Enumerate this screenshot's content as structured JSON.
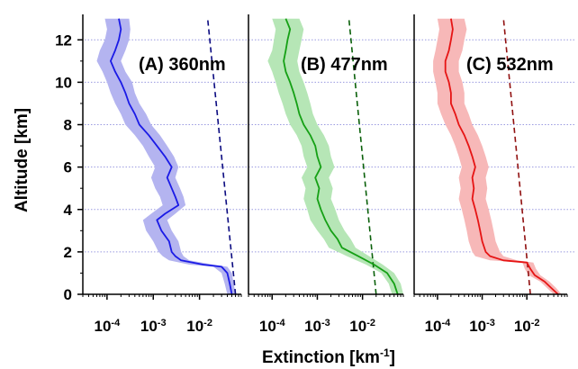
{
  "chart_data": {
    "type": "line",
    "ylabel": "Altitude [km]",
    "xlabel": {
      "main": "Extinction [km",
      "sup": "-1",
      "tail": "]"
    },
    "xscale": "log",
    "xlim": [
      3e-05,
      0.08
    ],
    "ylim": [
      0,
      13.2
    ],
    "yticks": [
      "0",
      "2",
      "4",
      "6",
      "8",
      "10",
      "12"
    ],
    "xticks": [
      {
        "base": "10",
        "exp": "-4",
        "value": 0.0001
      },
      {
        "base": "10",
        "exp": "-3",
        "value": 0.001
      },
      {
        "base": "10",
        "exp": "-2",
        "value": 0.01
      }
    ],
    "grid_y": true,
    "panels": [
      {
        "label": "(A) 360nm",
        "color": "#1a1ae6",
        "band_color": "#b4b4f0",
        "dashed_color": "#0a0a80",
        "profile": [
          [
            0.0,
            0.05
          ],
          [
            0.5,
            0.045
          ],
          [
            1.0,
            0.04
          ],
          [
            1.3,
            0.03
          ],
          [
            1.4,
            0.012
          ],
          [
            1.6,
            0.004
          ],
          [
            1.8,
            0.003
          ],
          [
            2.0,
            0.0025
          ],
          [
            2.5,
            0.0022
          ],
          [
            3.0,
            0.0015
          ],
          [
            3.5,
            0.0012
          ],
          [
            3.8,
            0.0018
          ],
          [
            4.2,
            0.0035
          ],
          [
            4.6,
            0.003
          ],
          [
            5.0,
            0.0025
          ],
          [
            5.5,
            0.002
          ],
          [
            6.0,
            0.0025
          ],
          [
            6.5,
            0.0018
          ],
          [
            7.0,
            0.0012
          ],
          [
            7.5,
            0.0008
          ],
          [
            8.0,
            0.0005
          ],
          [
            8.5,
            0.0004
          ],
          [
            9.0,
            0.0003
          ],
          [
            9.5,
            0.00025
          ],
          [
            10.0,
            0.0002
          ],
          [
            10.5,
            0.00015
          ],
          [
            11.0,
            0.00012
          ],
          [
            11.5,
            0.00015
          ],
          [
            12.0,
            0.00018
          ],
          [
            12.5,
            0.0002
          ],
          [
            13.0,
            0.00018
          ]
        ],
        "band": {
          "low": [
            0.04,
            0.035,
            0.03,
            0.02,
            0.006,
            0.0022,
            0.0016,
            0.0013,
            0.001,
            0.0007,
            0.0006,
            0.0009,
            0.0016,
            0.0014,
            0.0011,
            0.0009,
            0.0011,
            0.0008,
            0.0006,
            0.0004,
            0.00025,
            0.0002,
            0.00015,
            0.00012,
            0.0001,
            8e-05,
            6e-05,
            7e-05,
            9e-05,
            0.0001,
            9e-05
          ],
          "high": [
            0.06,
            0.055,
            0.05,
            0.04,
            0.02,
            0.006,
            0.0045,
            0.004,
            0.0035,
            0.0025,
            0.002,
            0.003,
            0.005,
            0.0045,
            0.0038,
            0.003,
            0.0035,
            0.0028,
            0.002,
            0.0014,
            0.0009,
            0.0007,
            0.0005,
            0.0004,
            0.00035,
            0.00025,
            0.0002,
            0.00025,
            0.0003,
            0.00032,
            0.0003
          ]
        },
        "dashed": [
          [
            0,
            0.06
          ],
          [
            13,
            0.015
          ]
        ]
      },
      {
        "label": "(B) 477nm",
        "color": "#15a015",
        "band_color": "#b6e6b6",
        "dashed_color": "#0a600a",
        "profile": [
          [
            0.0,
            0.06
          ],
          [
            0.5,
            0.05
          ],
          [
            1.0,
            0.035
          ],
          [
            1.4,
            0.018
          ],
          [
            1.8,
            0.008
          ],
          [
            2.2,
            0.0035
          ],
          [
            2.6,
            0.0028
          ],
          [
            3.0,
            0.002
          ],
          [
            3.5,
            0.0015
          ],
          [
            4.0,
            0.0012
          ],
          [
            4.5,
            0.001
          ],
          [
            5.0,
            0.0011
          ],
          [
            5.5,
            0.0009
          ],
          [
            6.0,
            0.0012
          ],
          [
            6.5,
            0.001
          ],
          [
            7.0,
            0.0009
          ],
          [
            7.5,
            0.0007
          ],
          [
            8.0,
            0.0005
          ],
          [
            8.5,
            0.0004
          ],
          [
            9.0,
            0.00035
          ],
          [
            9.5,
            0.0003
          ],
          [
            10.0,
            0.00025
          ],
          [
            10.5,
            0.0002
          ],
          [
            11.0,
            0.00018
          ],
          [
            11.5,
            0.0002
          ],
          [
            12.0,
            0.00022
          ],
          [
            12.5,
            0.00025
          ],
          [
            13.0,
            0.0002
          ]
        ],
        "band": {
          "low": [
            0.045,
            0.038,
            0.026,
            0.012,
            0.0045,
            0.0018,
            0.0014,
            0.001,
            0.0007,
            0.0006,
            0.0005,
            0.00055,
            0.00045,
            0.0006,
            0.0005,
            0.00045,
            0.00035,
            0.00025,
            0.0002,
            0.00017,
            0.00014,
            0.00012,
            0.0001,
            8e-05,
            0.0001,
            0.00011,
            0.00012,
            0.0001
          ],
          "high": [
            0.08,
            0.07,
            0.05,
            0.028,
            0.014,
            0.007,
            0.0055,
            0.004,
            0.003,
            0.0025,
            0.002,
            0.0022,
            0.0018,
            0.0024,
            0.002,
            0.0018,
            0.0014,
            0.001,
            0.0008,
            0.0007,
            0.0006,
            0.0005,
            0.0004,
            0.00036,
            0.0004,
            0.00045,
            0.0005,
            0.0004
          ]
        },
        "dashed": [
          [
            0,
            0.02
          ],
          [
            13,
            0.005
          ]
        ]
      },
      {
        "label": "(C) 532nm",
        "color": "#e61414",
        "band_color": "#f7b8b8",
        "dashed_color": "#901010",
        "profile": [
          [
            0.0,
            0.05
          ],
          [
            0.3,
            0.035
          ],
          [
            0.6,
            0.025
          ],
          [
            0.9,
            0.015
          ],
          [
            1.2,
            0.012
          ],
          [
            1.5,
            0.01
          ],
          [
            1.6,
            0.003
          ],
          [
            1.8,
            0.0015
          ],
          [
            2.0,
            0.0012
          ],
          [
            2.5,
            0.001
          ],
          [
            3.0,
            0.0009
          ],
          [
            3.5,
            0.0008
          ],
          [
            4.0,
            0.0007
          ],
          [
            4.5,
            0.0006
          ],
          [
            5.0,
            0.00065
          ],
          [
            5.5,
            0.0006
          ],
          [
            6.0,
            0.0007
          ],
          [
            6.5,
            0.0006
          ],
          [
            7.0,
            0.0005
          ],
          [
            7.5,
            0.0004
          ],
          [
            8.0,
            0.0003
          ],
          [
            8.5,
            0.00025
          ],
          [
            9.0,
            0.0002
          ],
          [
            9.5,
            0.0002
          ],
          [
            10.0,
            0.00018
          ],
          [
            10.5,
            0.00015
          ],
          [
            11.0,
            0.00015
          ],
          [
            11.5,
            0.00018
          ],
          [
            12.0,
            0.0002
          ],
          [
            12.5,
            0.00022
          ],
          [
            13.0,
            0.0002
          ]
        ],
        "band": {
          "low": [
            0.04,
            0.028,
            0.02,
            0.011,
            0.009,
            0.008,
            0.0015,
            0.0007,
            0.0006,
            0.0005,
            0.00045,
            0.0004,
            0.00035,
            0.0003,
            0.00033,
            0.0003,
            0.00035,
            0.0003,
            0.00025,
            0.0002,
            0.00015,
            0.00012,
            0.0001,
            0.0001,
            9e-05,
            8e-05,
            8e-05,
            9e-05,
            0.0001,
            0.00011,
            0.0001
          ],
          "high": [
            0.06,
            0.045,
            0.032,
            0.02,
            0.016,
            0.014,
            0.006,
            0.003,
            0.0025,
            0.002,
            0.0018,
            0.0016,
            0.0014,
            0.0012,
            0.0013,
            0.0012,
            0.0014,
            0.0012,
            0.001,
            0.0008,
            0.0006,
            0.0005,
            0.0004,
            0.0004,
            0.00036,
            0.0003,
            0.0003,
            0.00036,
            0.0004,
            0.00045,
            0.0004
          ]
        },
        "dashed": [
          [
            0,
            0.012
          ],
          [
            13,
            0.003
          ]
        ]
      }
    ]
  }
}
